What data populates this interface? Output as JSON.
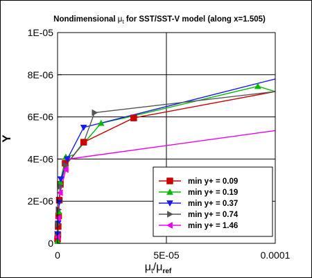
{
  "chart_data": {
    "type": "line",
    "title": {
      "prefix": "Nondimensional ",
      "symbol": "μ",
      "symbol_sub": "t",
      "suffix": " for SST/SST-V model (along x=1.505)"
    },
    "xlabel": {
      "num": "μ",
      "num_sub": "t",
      "slash": "/",
      "den": "μ",
      "den_sub": "ref"
    },
    "ylabel": "Y",
    "xlim": [
      0,
      0.0001
    ],
    "ylim": [
      0,
      1e-05
    ],
    "xticks": [
      {
        "value": 0,
        "label": "0"
      },
      {
        "value": 5e-05,
        "label": "5E-05"
      },
      {
        "value": 0.0001,
        "label": "0.0001"
      }
    ],
    "yticks": [
      {
        "value": 0,
        "label": "0"
      },
      {
        "value": 2e-06,
        "label": "2E-06"
      },
      {
        "value": 4e-06,
        "label": "4E-06"
      },
      {
        "value": 6e-06,
        "label": "6E-06"
      },
      {
        "value": 8e-06,
        "label": "8E-06"
      },
      {
        "value": 1e-05,
        "label": "1E-05"
      }
    ],
    "grid": true,
    "legend_position": "bottom-right",
    "series": [
      {
        "name": "min y+ = 0.09",
        "color": "#cc0000",
        "marker": "square",
        "points": [
          [
            0,
            2e-07
          ],
          [
            1.5e-07,
            4e-07
          ],
          [
            3e-07,
            8e-07
          ],
          [
            5e-07,
            1.3e-06
          ],
          [
            8e-07,
            2.05e-06
          ],
          [
            1.3e-06,
            2.8e-06
          ],
          [
            3.5e-06,
            3.8e-06
          ],
          [
            6.5e-06,
            4.05e-06
          ],
          [
            1.2e-05,
            4.8e-06
          ],
          [
            3.5e-05,
            5.95e-06
          ],
          [
            0.0001,
            7.2e-06
          ]
        ],
        "marker_points": [
          [
            0,
            2e-07
          ],
          [
            1.5e-07,
            4e-07
          ],
          [
            3e-07,
            8e-07
          ],
          [
            5e-07,
            1.3e-06
          ],
          [
            8e-07,
            2.05e-06
          ],
          [
            1.3e-06,
            2.8e-06
          ],
          [
            3.5e-06,
            3.8e-06
          ],
          [
            1.2e-05,
            4.8e-06
          ],
          [
            3.5e-05,
            5.95e-06
          ]
        ]
      },
      {
        "name": "min y+ = 0.19",
        "color": "#00bb00",
        "marker": "triangle-up",
        "points": [
          [
            0,
            1e-07
          ],
          [
            2e-07,
            5e-07
          ],
          [
            6e-07,
            1.5e-06
          ],
          [
            1.2e-06,
            2.9e-06
          ],
          [
            3.8e-06,
            4.1e-06
          ],
          [
            7.5e-06,
            4.2e-06
          ],
          [
            1.25e-05,
            4.8e-06
          ],
          [
            2e-05,
            5.7e-06
          ],
          [
            3.5e-05,
            6.05e-06
          ],
          [
            9.2e-05,
            7.45e-06
          ],
          [
            0.0001,
            7.2e-06
          ]
        ],
        "marker_points": [
          [
            0,
            1e-07
          ],
          [
            2e-07,
            5e-07
          ],
          [
            6e-07,
            1.5e-06
          ],
          [
            1.2e-06,
            2.9e-06
          ],
          [
            3.8e-06,
            4.1e-06
          ],
          [
            2e-05,
            5.7e-06
          ],
          [
            9.2e-05,
            7.45e-06
          ]
        ]
      },
      {
        "name": "min y+ = 0.37",
        "color": "#1a1aee",
        "marker": "triangle-down",
        "points": [
          [
            0,
            4.5e-07
          ],
          [
            3e-07,
            9.5e-07
          ],
          [
            8e-07,
            1.95e-06
          ],
          [
            1.5e-06,
            3.05e-06
          ],
          [
            4.5e-06,
            4e-06
          ],
          [
            1.2e-05,
            5.5e-06
          ],
          [
            3.5e-05,
            6.1e-06
          ],
          [
            0.0001,
            7.8e-06
          ]
        ],
        "marker_points": [
          [
            0,
            4.5e-07
          ],
          [
            3e-07,
            9.5e-07
          ],
          [
            8e-07,
            1.95e-06
          ],
          [
            1.5e-06,
            3.05e-06
          ],
          [
            4.5e-06,
            4e-06
          ],
          [
            1.2e-05,
            5.5e-06
          ]
        ]
      },
      {
        "name": "min y+ = 0.74",
        "color": "#555555",
        "marker": "triangle-right",
        "points": [
          [
            0,
            9e-07
          ],
          [
            4e-07,
            1.6e-06
          ],
          [
            1.2e-06,
            2.7e-06
          ],
          [
            3.8e-06,
            3.7e-06
          ],
          [
            7.5e-06,
            4.2e-06
          ],
          [
            1.2e-05,
            4.8e-06
          ],
          [
            1.7e-05,
            6.2e-06
          ],
          [
            0.0001,
            7.2e-06
          ]
        ],
        "marker_points": [
          [
            0,
            9e-07
          ],
          [
            4e-07,
            1.6e-06
          ],
          [
            1.2e-06,
            2.7e-06
          ],
          [
            3.8e-06,
            3.7e-06
          ],
          [
            1.7e-05,
            6.2e-06
          ]
        ]
      },
      {
        "name": "min y+ = 1.46",
        "color": "#ee00ee",
        "marker": "triangle-left",
        "points": [
          [
            0,
            3e-07
          ],
          [
            4e-07,
            1.2e-06
          ],
          [
            1.2e-06,
            2.4e-06
          ],
          [
            3.8e-06,
            3.5e-06
          ],
          [
            5e-06,
            4e-06
          ],
          [
            0.0001,
            5.35e-06
          ]
        ],
        "marker_points": [
          [
            0,
            3e-07
          ],
          [
            4e-07,
            1.2e-06
          ],
          [
            1.2e-06,
            2.4e-06
          ],
          [
            3.8e-06,
            3.5e-06
          ]
        ]
      }
    ]
  }
}
